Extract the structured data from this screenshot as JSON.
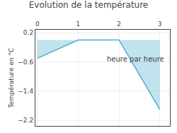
{
  "chart_data": {
    "type": "area",
    "title": "Evolution de la température",
    "ylabel": "Température en °C",
    "annotations": [
      {
        "text": "heure par heure",
        "x": 2.4,
        "y": -0.52
      }
    ],
    "x": [
      0,
      1,
      2,
      3
    ],
    "values": [
      -0.5,
      0.0,
      0.0,
      -1.9
    ],
    "color": "#4aafcc",
    "xlim": [
      -0.05,
      3.25
    ],
    "xticks": [
      0,
      1,
      2,
      3
    ],
    "ylim": [
      -2.35,
      0.28
    ],
    "yticks": [
      0.2,
      -0.6,
      -1.4,
      -2.2
    ],
    "grid": true
  }
}
